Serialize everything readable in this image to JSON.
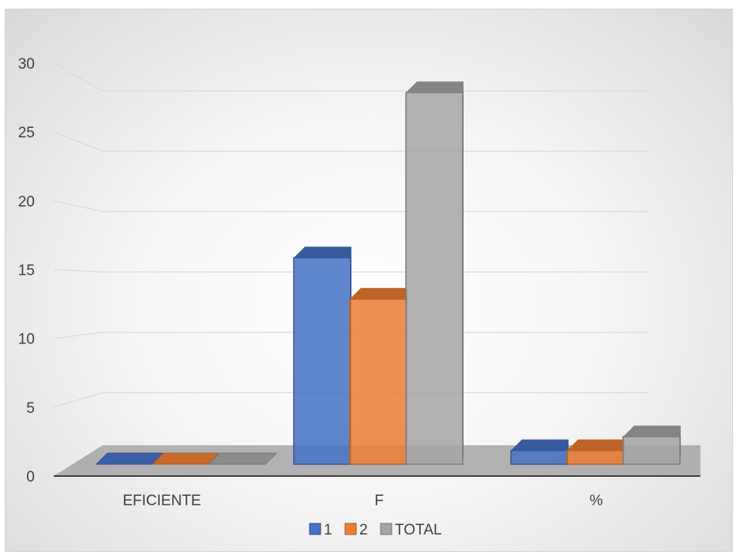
{
  "chart_data": {
    "type": "bar",
    "categories": [
      "EFICIENTE",
      "F",
      "%"
    ],
    "series": [
      {
        "name": "1",
        "values": [
          0,
          15,
          1
        ],
        "color": "#4472c4"
      },
      {
        "name": "2",
        "values": [
          0,
          12,
          1
        ],
        "color": "#ed7d31"
      },
      {
        "name": "TOTAL",
        "values": [
          0,
          27,
          2
        ],
        "color": "#a5a5a5"
      }
    ],
    "title": "",
    "xlabel": "",
    "ylabel": "",
    "ylim": [
      0,
      30
    ],
    "yticks": [
      "0",
      "5",
      "10",
      "15",
      "20",
      "25",
      "30"
    ],
    "grid": true,
    "legend_position": "bottom"
  }
}
